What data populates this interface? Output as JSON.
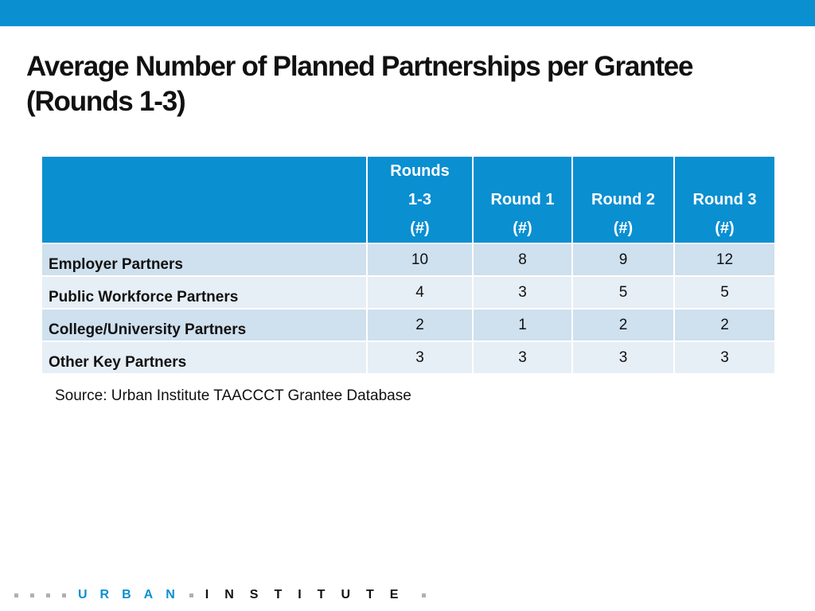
{
  "slide": {
    "title_line1": "Average Number of Planned Partnerships per Grantee",
    "title_line2": "(Rounds 1-3)",
    "source": "Source: Urban Institute TAACCCT Grantee Database"
  },
  "table": {
    "headers": [
      {
        "lines": [
          "",
          "",
          ""
        ]
      },
      {
        "lines": [
          "Rounds",
          "1-3",
          "(#)"
        ]
      },
      {
        "lines": [
          "",
          "Round 1",
          "(#)"
        ]
      },
      {
        "lines": [
          "",
          "Round 2",
          "(#)"
        ]
      },
      {
        "lines": [
          "",
          "Round 3",
          "(#)"
        ]
      }
    ],
    "rows": [
      {
        "label": "Employer Partners",
        "values": [
          "10",
          "8",
          "9",
          "12"
        ]
      },
      {
        "label": "Public Workforce Partners",
        "values": [
          "4",
          "3",
          "5",
          "5"
        ]
      },
      {
        "label": "College/University Partners",
        "values": [
          "2",
          "1",
          "2",
          "2"
        ]
      },
      {
        "label": "Other Key Partners",
        "values": [
          "3",
          "3",
          "3",
          "3"
        ]
      }
    ]
  },
  "footer": {
    "logo_word1": "URBAN",
    "logo_word2": "INSTITUTE"
  },
  "colors": {
    "accent": "#0a8fd1",
    "row_dark": "#cfe0ee",
    "row_light": "#e6eef6"
  }
}
